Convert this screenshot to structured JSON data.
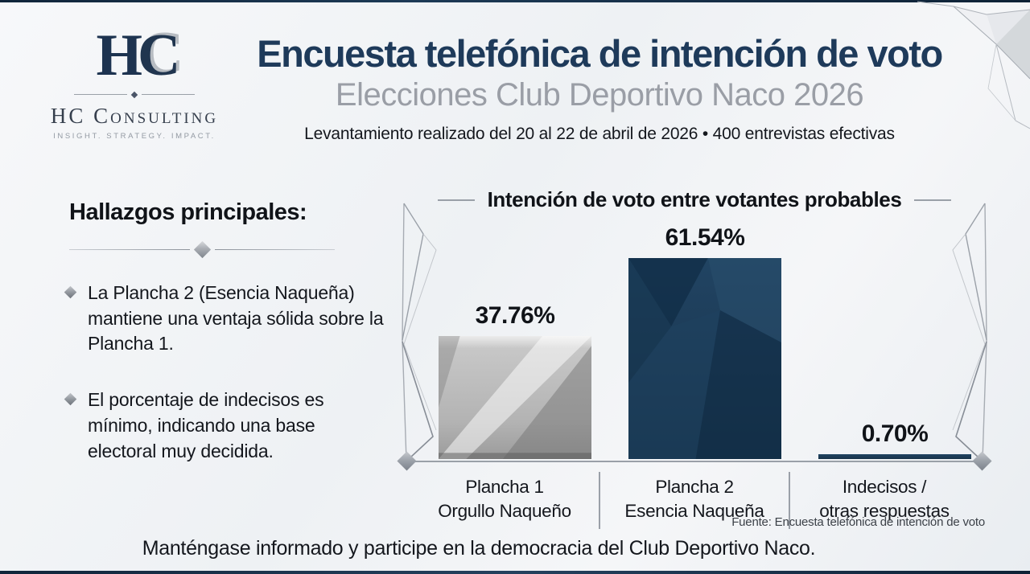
{
  "brand": {
    "monogram_h": "H",
    "monogram_c": "C",
    "name": "HC Consulting",
    "tagline": "INSIGHT. STRATEGY. IMPACT."
  },
  "header": {
    "title": "Encuesta telefónica de intención de voto",
    "subtitle": "Elecciones Club Deportivo Naco 2026",
    "methodology": "Levantamiento realizado del 20 al 22 de abril de 2026 • 400 entrevistas efectivas"
  },
  "findings": {
    "heading": "Hallazgos principales:",
    "items": [
      "La Plancha 2 (Esencia Naqueña) mantiene una ventaja sólida sobre la Plancha 1.",
      "El porcentaje de indecisos es mínimo, indicando una base electoral muy decidida."
    ]
  },
  "chart_data": {
    "type": "bar",
    "title": "Intención de voto entre votantes probables",
    "categories": [
      [
        "Plancha 1",
        "Orgullo Naqueño"
      ],
      [
        "Plancha 2",
        "Esencia Naqueña"
      ],
      [
        "Indecisos /",
        "otras respuestas"
      ]
    ],
    "values": [
      37.76,
      61.54,
      0.7
    ],
    "value_labels": [
      "37.76%",
      "61.54%",
      "0.70%"
    ],
    "bar_styles": [
      "silver",
      "navy-big",
      "navy-small"
    ],
    "bar_colors": {
      "silver": "#b9b9b9",
      "navy": "#1c3a55"
    },
    "ylim": [
      0,
      70
    ],
    "grid": false,
    "legend": "none",
    "source": "Fuente: Encuesta telefónica de intención de voto"
  },
  "footer": {
    "message": "Manténgase informado y participe en la democracia del Club Deportivo Naco."
  },
  "colors": {
    "title_navy": "#1e3a5a",
    "subtitle_gray": "#9a9ea6",
    "bar_navy": "#1c3a55",
    "bar_silver": "#b9b9b9",
    "axis_gray": "#9aa0a8",
    "background": "#f2f4f7"
  }
}
